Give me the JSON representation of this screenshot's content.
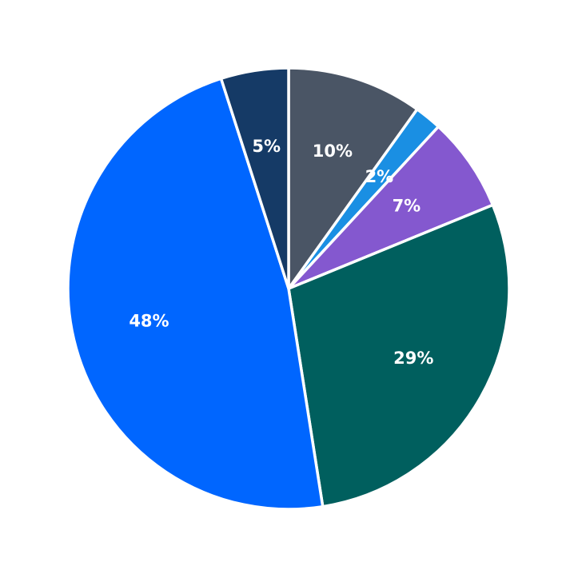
{
  "chart_data": {
    "type": "pie",
    "values": [
      10,
      2,
      7,
      29,
      48,
      5
    ],
    "value_labels": [
      "10%",
      "2%",
      "7%",
      "29%",
      "48%",
      "5%"
    ],
    "colors": [
      "#4a5565",
      "#1a8fe3",
      "#8458cf",
      "#005f5e",
      "#0066ff",
      "#153a66"
    ]
  }
}
